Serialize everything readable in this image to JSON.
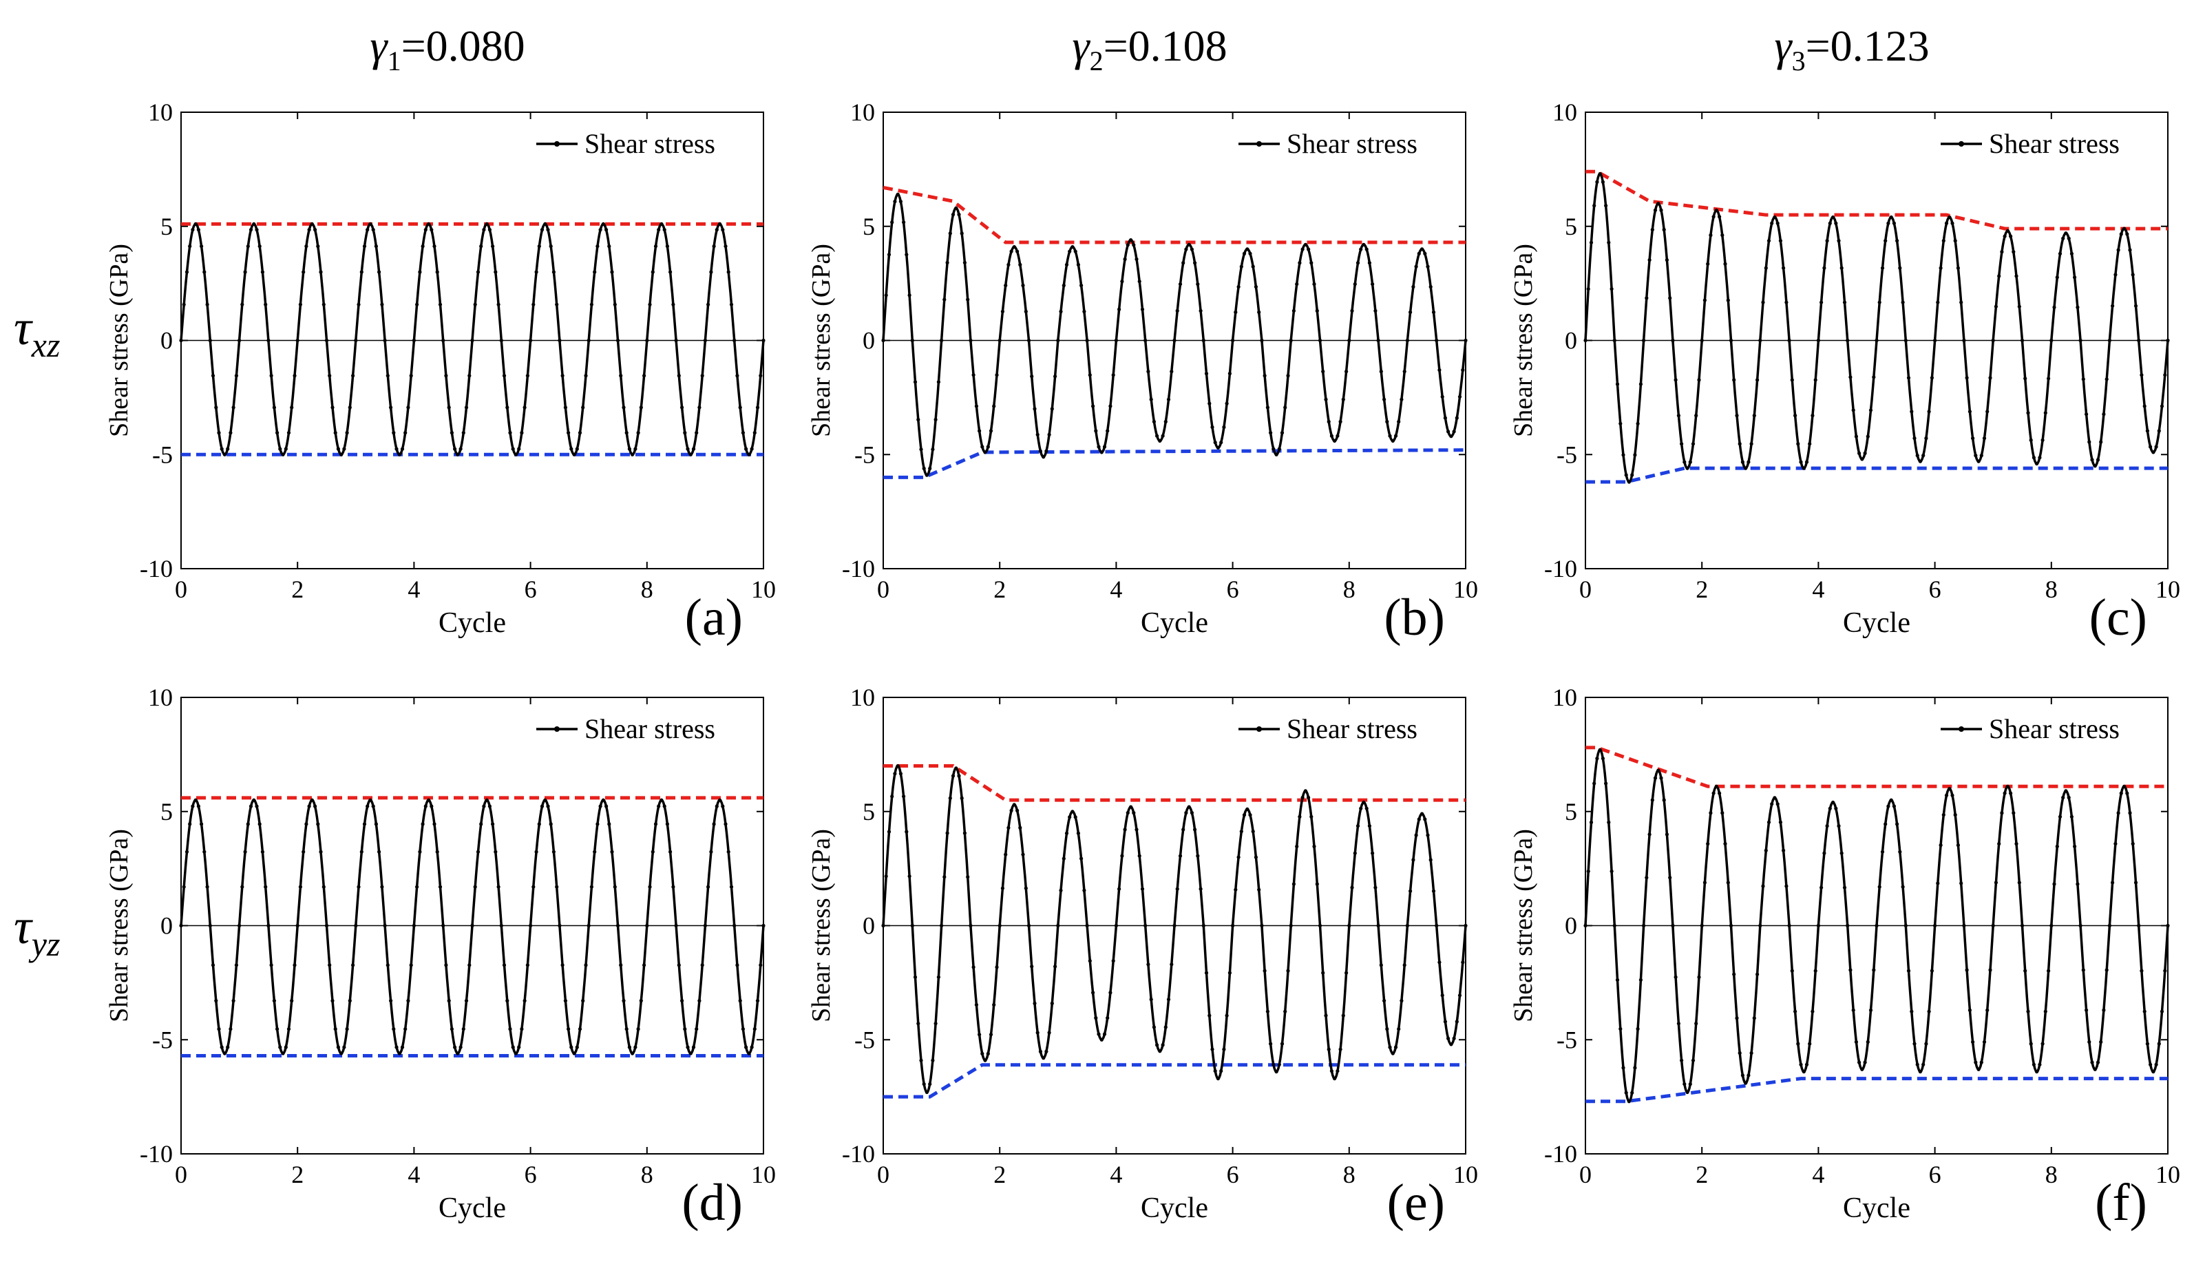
{
  "figure": {
    "col_titles": [
      {
        "symbol": "γ",
        "sub": "1",
        "rest": "=0.080"
      },
      {
        "symbol": "γ",
        "sub": "2",
        "rest": "=0.108"
      },
      {
        "symbol": "γ",
        "sub": "3",
        "rest": "=0.123"
      }
    ],
    "row_labels": [
      {
        "symbol": "τ",
        "sub": "xz"
      },
      {
        "symbol": "τ",
        "sub": "yz"
      }
    ],
    "colors": {
      "series": "#000000",
      "upper": "#e8201c",
      "lower": "#1d3fe0",
      "zero": "#000000"
    }
  },
  "chart_data": [
    {
      "type": "line",
      "panel": "(a)",
      "xlabel": "Cycle",
      "ylabel": "Shear stress (GPa)",
      "xlim": [
        0,
        10
      ],
      "ylim": [
        -10,
        10
      ],
      "xticks": [
        0,
        2,
        4,
        6,
        8,
        10
      ],
      "yticks": [
        -10,
        -5,
        0,
        5,
        10
      ],
      "legend": "Shear stress",
      "series": {
        "name": "Shear stress",
        "amplitude": 5.1,
        "offset": 0.0,
        "peaks": [
          5.1,
          5.1,
          5.1,
          5.1,
          5.1,
          5.1,
          5.1,
          5.1,
          5.1,
          5.1
        ],
        "troughs": [
          -5.0,
          -5.0,
          -5.0,
          -5.0,
          -5.0,
          -5.0,
          -5.0,
          -5.0,
          -5.0,
          -5.0
        ]
      },
      "upper_envelope": {
        "x": [
          0,
          10
        ],
        "y": [
          5.1,
          5.1
        ]
      },
      "lower_envelope": {
        "x": [
          0,
          10
        ],
        "y": [
          -5.0,
          -5.0
        ]
      }
    },
    {
      "type": "line",
      "panel": "(b)",
      "xlabel": "Cycle",
      "ylabel": "Shear stress (GPa)",
      "xlim": [
        0,
        10
      ],
      "ylim": [
        -10,
        10
      ],
      "xticks": [
        0,
        2,
        4,
        6,
        8,
        10
      ],
      "yticks": [
        -10,
        -5,
        0,
        5,
        10
      ],
      "legend": "Shear stress",
      "series": {
        "name": "Shear stress",
        "peaks": [
          6.4,
          5.8,
          4.1,
          4.1,
          4.4,
          4.2,
          4.0,
          4.2,
          4.2,
          4.0
        ],
        "troughs": [
          -5.9,
          -4.9,
          -5.1,
          -4.9,
          -4.4,
          -4.7,
          -5.0,
          -4.4,
          -4.4,
          -4.2
        ]
      },
      "upper_envelope": {
        "x": [
          0,
          1.2,
          2.1,
          10
        ],
        "y": [
          6.7,
          6.1,
          4.3,
          4.3
        ]
      },
      "lower_envelope": {
        "x": [
          0,
          0.7,
          1.7,
          10
        ],
        "y": [
          -6.0,
          -6.0,
          -4.9,
          -4.8
        ]
      }
    },
    {
      "type": "line",
      "panel": "(c)",
      "xlabel": "Cycle",
      "ylabel": "Shear stress (GPa)",
      "xlim": [
        0,
        10
      ],
      "ylim": [
        -10,
        10
      ],
      "xticks": [
        0,
        2,
        4,
        6,
        8,
        10
      ],
      "yticks": [
        -10,
        -5,
        0,
        5,
        10
      ],
      "legend": "Shear stress",
      "series": {
        "name": "Shear stress",
        "peaks": [
          7.3,
          6.0,
          5.7,
          5.4,
          5.4,
          5.4,
          5.4,
          4.8,
          4.7,
          4.9
        ],
        "troughs": [
          -6.2,
          -5.6,
          -5.6,
          -5.6,
          -5.2,
          -5.3,
          -5.3,
          -5.4,
          -5.5,
          -4.9
        ]
      },
      "upper_envelope": {
        "x": [
          0,
          0.2,
          1.1,
          3.1,
          6.2,
          7.2,
          10
        ],
        "y": [
          7.4,
          7.4,
          6.1,
          5.5,
          5.5,
          4.9,
          4.9
        ]
      },
      "lower_envelope": {
        "x": [
          0,
          0.7,
          1.7,
          10
        ],
        "y": [
          -6.2,
          -6.2,
          -5.6,
          -5.6
        ]
      }
    },
    {
      "type": "line",
      "panel": "(d)",
      "xlabel": "Cycle",
      "ylabel": "Shear stress (GPa)",
      "xlim": [
        0,
        10
      ],
      "ylim": [
        -10,
        10
      ],
      "xticks": [
        0,
        2,
        4,
        6,
        8,
        10
      ],
      "yticks": [
        -10,
        -5,
        0,
        5,
        10
      ],
      "legend": "Shear stress",
      "series": {
        "name": "Shear stress",
        "peaks": [
          5.5,
          5.5,
          5.5,
          5.5,
          5.5,
          5.5,
          5.5,
          5.5,
          5.5,
          5.5
        ],
        "troughs": [
          -5.6,
          -5.6,
          -5.6,
          -5.6,
          -5.6,
          -5.6,
          -5.6,
          -5.6,
          -5.6,
          -5.6
        ]
      },
      "upper_envelope": {
        "x": [
          0,
          10
        ],
        "y": [
          5.6,
          5.6
        ]
      },
      "lower_envelope": {
        "x": [
          0,
          10
        ],
        "y": [
          -5.7,
          -5.7
        ]
      }
    },
    {
      "type": "line",
      "panel": "(e)",
      "xlabel": "Cycle",
      "ylabel": "Shear stress (GPa)",
      "xlim": [
        0,
        10
      ],
      "ylim": [
        -10,
        10
      ],
      "xticks": [
        0,
        2,
        4,
        6,
        8,
        10
      ],
      "yticks": [
        -10,
        -5,
        0,
        5,
        10
      ],
      "legend": "Shear stress",
      "series": {
        "name": "Shear stress",
        "peaks": [
          7.0,
          6.9,
          5.3,
          5.0,
          5.2,
          5.2,
          5.1,
          5.9,
          5.4,
          4.9
        ],
        "troughs": [
          -7.3,
          -5.9,
          -5.8,
          -5.0,
          -5.5,
          -6.7,
          -6.4,
          -6.7,
          -5.6,
          -5.2
        ]
      },
      "upper_envelope": {
        "x": [
          0,
          1.2,
          2.1,
          10
        ],
        "y": [
          7.0,
          7.0,
          5.5,
          5.5
        ]
      },
      "lower_envelope": {
        "x": [
          0,
          0.8,
          1.7,
          10
        ],
        "y": [
          -7.5,
          -7.5,
          -6.1,
          -6.1
        ]
      }
    },
    {
      "type": "line",
      "panel": "(f)",
      "xlabel": "Cycle",
      "ylabel": "Shear stress (GPa)",
      "xlim": [
        0,
        10
      ],
      "ylim": [
        -10,
        10
      ],
      "xticks": [
        0,
        2,
        4,
        6,
        8,
        10
      ],
      "yticks": [
        -10,
        -5,
        0,
        5,
        10
      ],
      "legend": "Shear stress",
      "series": {
        "name": "Shear stress",
        "peaks": [
          7.7,
          6.8,
          6.1,
          5.6,
          5.4,
          5.5,
          6.0,
          6.1,
          5.9,
          6.1
        ],
        "troughs": [
          -7.7,
          -7.3,
          -6.9,
          -6.4,
          -6.3,
          -6.4,
          -6.3,
          -6.4,
          -6.3,
          -6.4
        ]
      },
      "upper_envelope": {
        "x": [
          0,
          0.2,
          2.1,
          10
        ],
        "y": [
          7.8,
          7.8,
          6.1,
          6.1
        ]
      },
      "lower_envelope": {
        "x": [
          0,
          0.7,
          3.7,
          10
        ],
        "y": [
          -7.7,
          -7.7,
          -6.7,
          -6.7
        ]
      }
    }
  ]
}
